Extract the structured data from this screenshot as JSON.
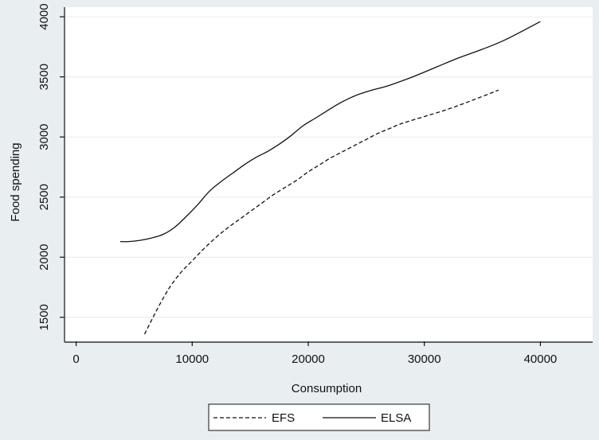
{
  "chart_data": {
    "type": "line",
    "xlabel": "Consumption",
    "ylabel": "Food spending",
    "xlim": [
      -1000,
      44500
    ],
    "ylim": [
      1300,
      4080
    ],
    "xticks": [
      0,
      10000,
      20000,
      30000,
      40000
    ],
    "yticks": [
      1500,
      2000,
      2500,
      3000,
      3500,
      4000
    ],
    "grid": "horizontal",
    "legend_position": "bottom",
    "background_color": "#e9eef1",
    "plot_background_color": "#ffffff",
    "gridline_color": "#e9eef1",
    "line_color": "#111111",
    "series": [
      {
        "name": "EFS",
        "dash": "dashed",
        "x": [
          5900,
          7000,
          8000,
          9000,
          10000,
          11000,
          12000,
          13000,
          14000,
          15000,
          16000,
          17000,
          18000,
          19000,
          20000,
          21000,
          22000,
          23000,
          24000,
          25000,
          26000,
          27000,
          28000,
          30000,
          32000,
          34000,
          36400
        ],
        "y": [
          1360,
          1570,
          1740,
          1870,
          1970,
          2070,
          2160,
          2240,
          2310,
          2380,
          2450,
          2520,
          2580,
          2640,
          2710,
          2770,
          2830,
          2880,
          2930,
          2980,
          3030,
          3070,
          3110,
          3170,
          3230,
          3300,
          3390
        ]
      },
      {
        "name": "ELSA",
        "dash": "solid",
        "x": [
          3800,
          4500,
          5500,
          6500,
          7500,
          8500,
          9500,
          10500,
          11500,
          12500,
          13500,
          14500,
          15500,
          16500,
          17500,
          18500,
          19500,
          20500,
          21500,
          22500,
          23500,
          24500,
          25500,
          27000,
          29000,
          31000,
          33000,
          35000,
          37000,
          40000
        ],
        "y": [
          2130,
          2130,
          2140,
          2160,
          2190,
          2250,
          2340,
          2440,
          2550,
          2630,
          2700,
          2770,
          2830,
          2880,
          2940,
          3010,
          3090,
          3150,
          3210,
          3270,
          3320,
          3360,
          3390,
          3430,
          3500,
          3580,
          3660,
          3730,
          3810,
          3960
        ]
      }
    ]
  }
}
